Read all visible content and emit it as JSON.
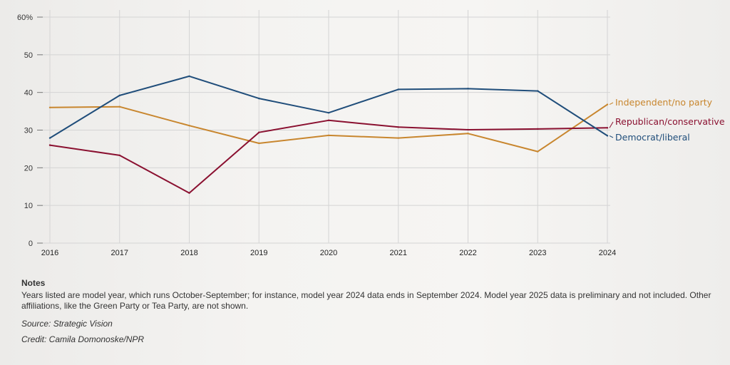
{
  "chart_data": {
    "type": "line",
    "x": [
      "2016",
      "2017",
      "2018",
      "2019",
      "2020",
      "2021",
      "2022",
      "2023",
      "2024"
    ],
    "ylim": [
      0,
      60
    ],
    "yticks": [
      0,
      10,
      20,
      30,
      40,
      50,
      60
    ],
    "ytick_labels": [
      "0",
      "10",
      "20",
      "30",
      "40",
      "50",
      "60%"
    ],
    "grid": true,
    "series": [
      {
        "name": "Independent/no party",
        "color": "#c8862e",
        "values": [
          36,
          36.2,
          31.2,
          26.5,
          28.6,
          27.9,
          29.1,
          24.3,
          36.8
        ]
      },
      {
        "name": "Republican/conservative",
        "color": "#8a1030",
        "values": [
          26,
          23.3,
          13.3,
          29.4,
          32.6,
          30.8,
          30.1,
          30.3,
          30.6
        ]
      },
      {
        "name": "Democrat/liberal",
        "color": "#1f4d7a",
        "values": [
          27.9,
          39.2,
          44.3,
          38.4,
          34.6,
          40.8,
          41,
          40.4,
          28.5
        ]
      }
    ]
  },
  "notes": {
    "title": "Notes",
    "body": "Years listed are model year, which runs October-September; for instance, model year 2024 data ends in September 2024. Model year 2025 data is preliminary and not included. Other affiliations, like the Green Party or Tea Party, are not shown.",
    "source": "Source: Strategic Vision",
    "credit": "Credit: Camila Domonoske/NPR"
  }
}
